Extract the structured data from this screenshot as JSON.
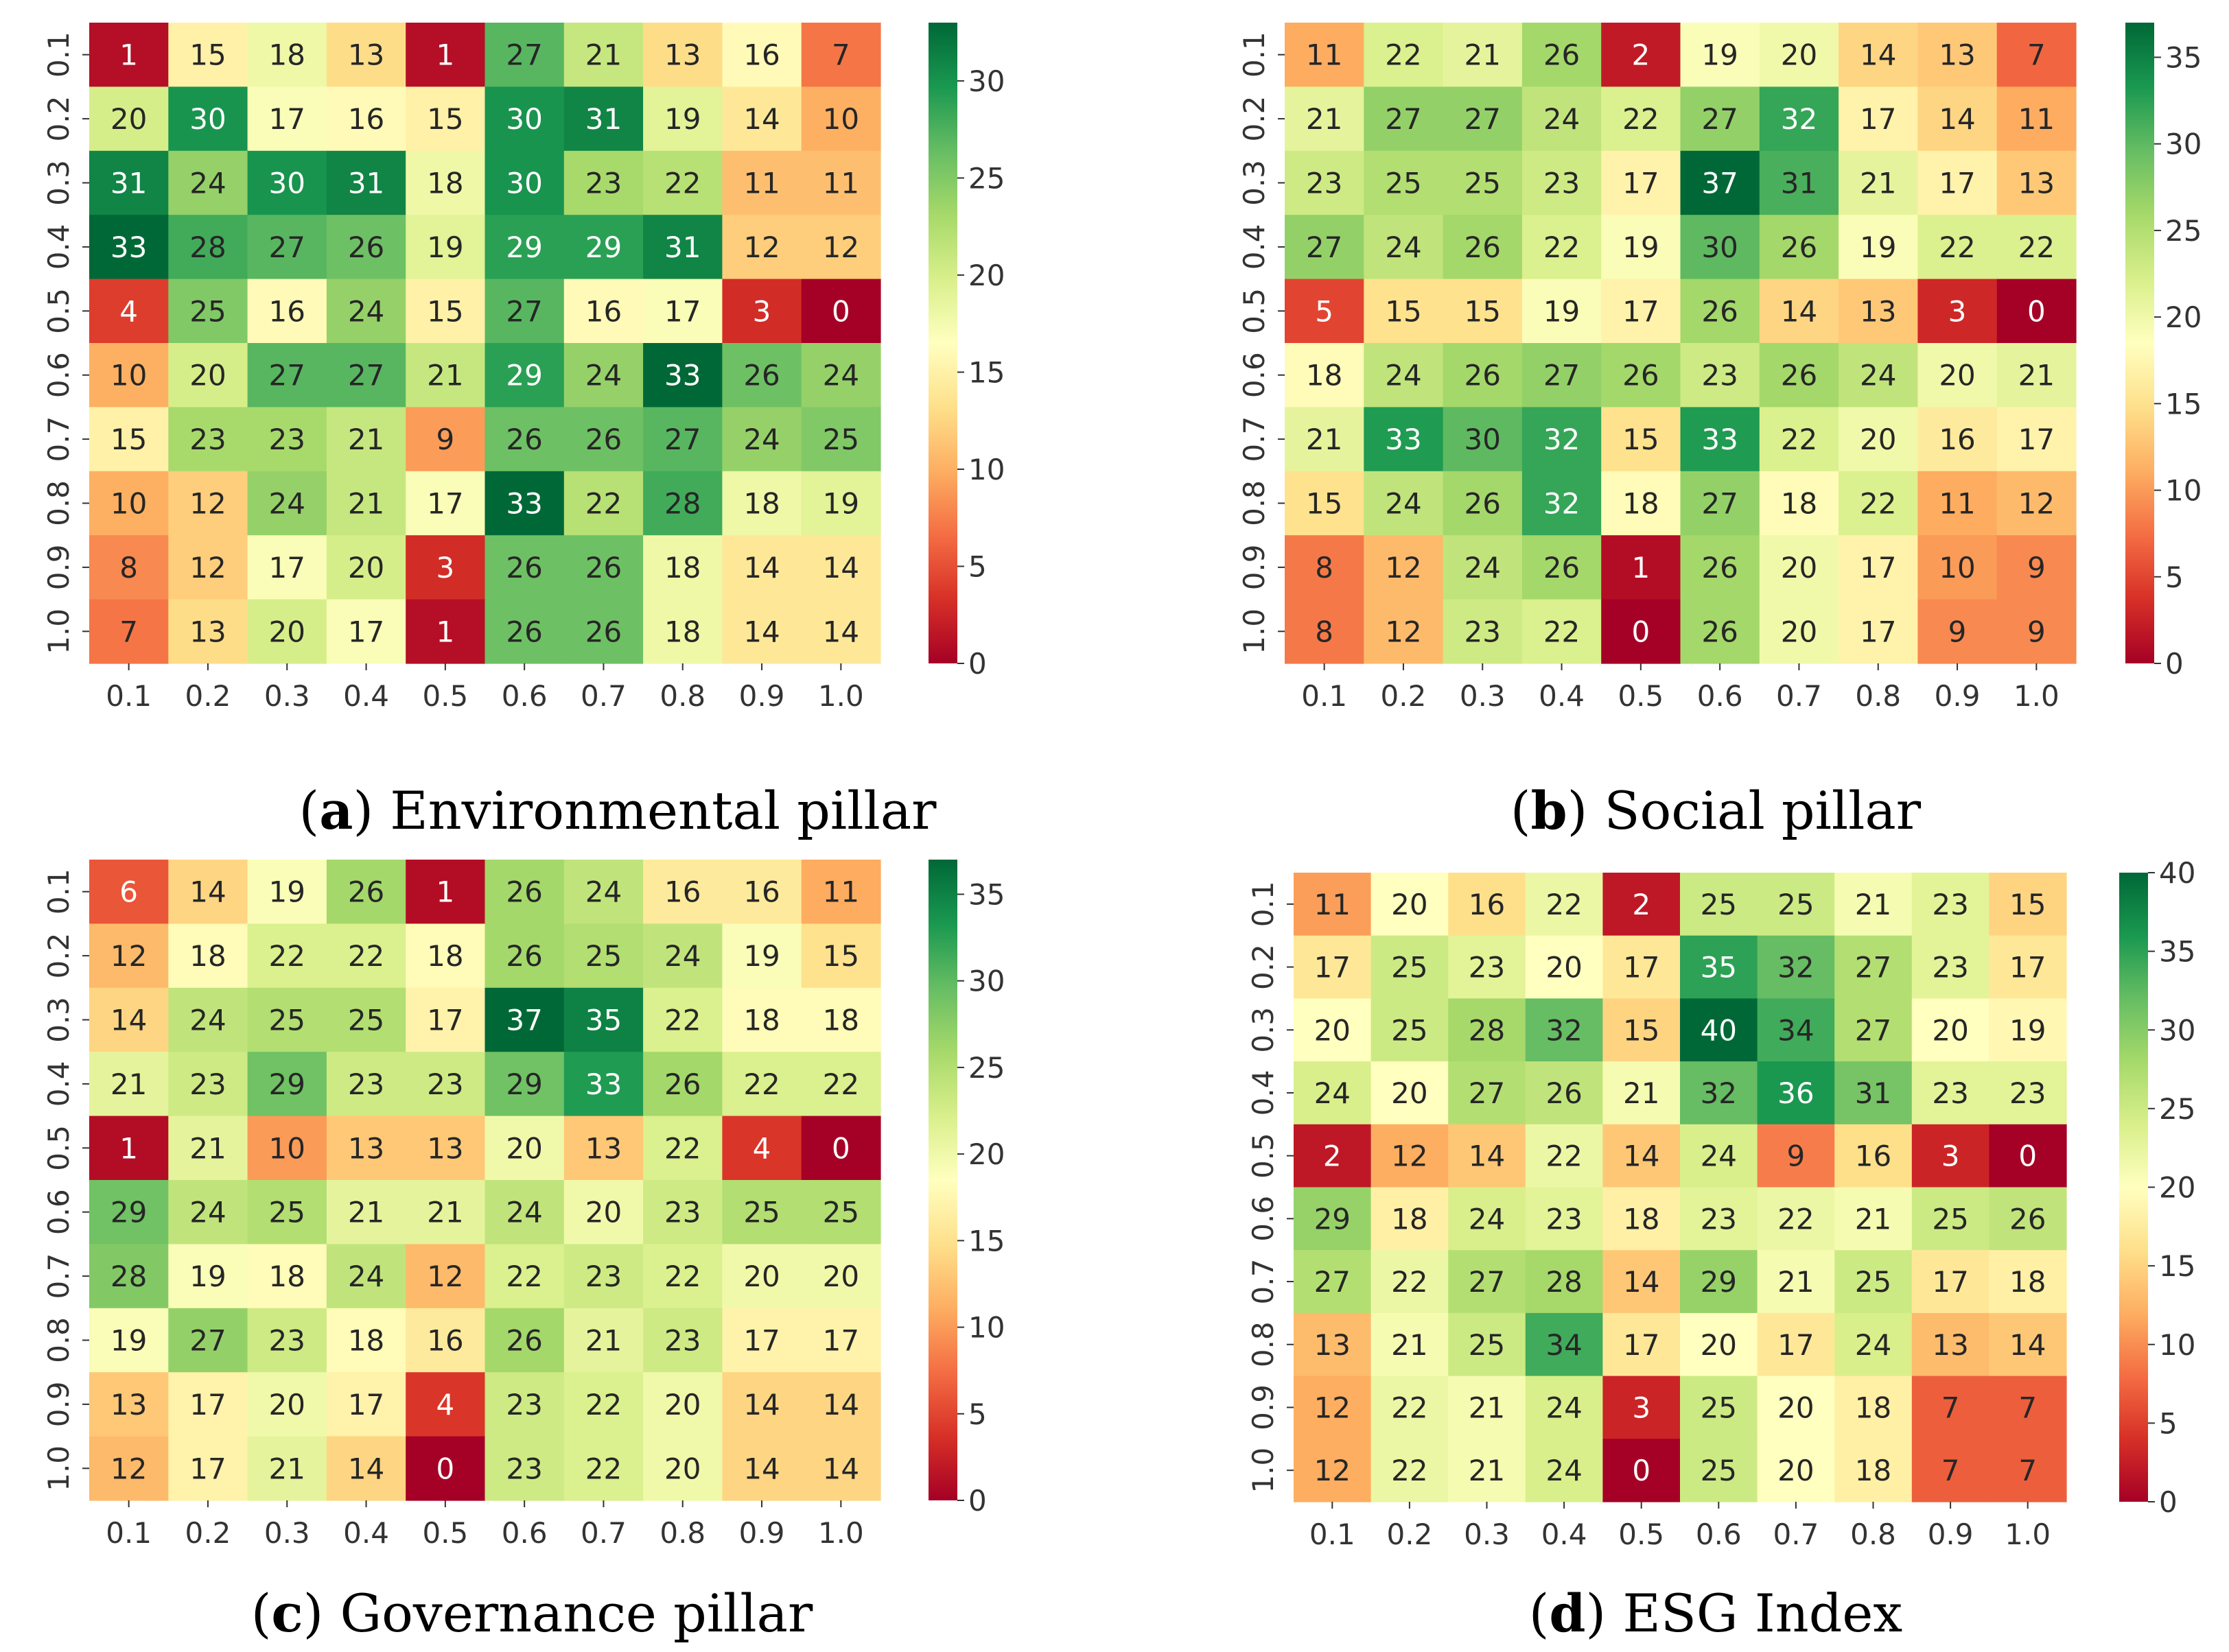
{
  "chart_data": [
    {
      "type": "heatmap",
      "caption_letter": "a",
      "caption_text": "Environmental pillar",
      "x_ticks": [
        "0.1",
        "0.2",
        "0.3",
        "0.4",
        "0.5",
        "0.6",
        "0.7",
        "0.8",
        "0.9",
        "1.0"
      ],
      "y_ticks": [
        "0.1",
        "0.2",
        "0.3",
        "0.4",
        "0.5",
        "0.6",
        "0.7",
        "0.8",
        "0.9",
        "1.0"
      ],
      "values": [
        [
          1,
          15,
          18,
          13,
          1,
          27,
          21,
          13,
          16,
          7
        ],
        [
          20,
          30,
          17,
          16,
          15,
          30,
          31,
          19,
          14,
          10
        ],
        [
          31,
          24,
          30,
          31,
          18,
          30,
          23,
          22,
          11,
          11
        ],
        [
          33,
          28,
          27,
          26,
          19,
          29,
          29,
          31,
          12,
          12
        ],
        [
          4,
          25,
          16,
          24,
          15,
          27,
          16,
          17,
          3,
          0
        ],
        [
          10,
          20,
          27,
          27,
          21,
          29,
          24,
          33,
          26,
          24
        ],
        [
          15,
          23,
          23,
          21,
          9,
          26,
          26,
          27,
          24,
          25
        ],
        [
          10,
          12,
          24,
          21,
          17,
          33,
          22,
          28,
          18,
          19
        ],
        [
          8,
          12,
          17,
          20,
          3,
          26,
          26,
          18,
          14,
          14
        ],
        [
          7,
          13,
          20,
          17,
          1,
          26,
          26,
          18,
          14,
          14
        ]
      ],
      "vmin": 0,
      "vmax": 33,
      "colorbar_ticks": [
        0,
        5,
        10,
        15,
        20,
        25,
        30
      ],
      "colormap": [
        "#a50026",
        "#d73027",
        "#f46d43",
        "#fdae61",
        "#fee08b",
        "#ffffbf",
        "#d9ef8b",
        "#a6d96a",
        "#66bd63",
        "#1a9850",
        "#006837"
      ]
    },
    {
      "type": "heatmap",
      "caption_letter": "b",
      "caption_text": "Social pillar",
      "x_ticks": [
        "0.1",
        "0.2",
        "0.3",
        "0.4",
        "0.5",
        "0.6",
        "0.7",
        "0.8",
        "0.9",
        "1.0"
      ],
      "y_ticks": [
        "0.1",
        "0.2",
        "0.3",
        "0.4",
        "0.5",
        "0.6",
        "0.7",
        "0.8",
        "0.9",
        "1.0"
      ],
      "values": [
        [
          11,
          22,
          21,
          26,
          2,
          19,
          20,
          14,
          13,
          7
        ],
        [
          21,
          27,
          27,
          24,
          22,
          27,
          32,
          17,
          14,
          11
        ],
        [
          23,
          25,
          25,
          23,
          17,
          37,
          31,
          21,
          17,
          13
        ],
        [
          27,
          24,
          26,
          22,
          19,
          30,
          26,
          19,
          22,
          22
        ],
        [
          5,
          15,
          15,
          19,
          17,
          26,
          14,
          13,
          3,
          0
        ],
        [
          18,
          24,
          26,
          27,
          26,
          23,
          26,
          24,
          20,
          21
        ],
        [
          21,
          33,
          30,
          32,
          15,
          33,
          22,
          20,
          16,
          17
        ],
        [
          15,
          24,
          26,
          32,
          18,
          27,
          18,
          22,
          11,
          12
        ],
        [
          8,
          12,
          24,
          26,
          1,
          26,
          20,
          17,
          10,
          9
        ],
        [
          8,
          12,
          23,
          22,
          0,
          26,
          20,
          17,
          9,
          9
        ]
      ],
      "vmin": 0,
      "vmax": 37,
      "colorbar_ticks": [
        0,
        5,
        10,
        15,
        20,
        25,
        30,
        35
      ],
      "colormap": [
        "#a50026",
        "#d73027",
        "#f46d43",
        "#fdae61",
        "#fee08b",
        "#ffffbf",
        "#d9ef8b",
        "#a6d96a",
        "#66bd63",
        "#1a9850",
        "#006837"
      ]
    },
    {
      "type": "heatmap",
      "caption_letter": "c",
      "caption_text": "Governance pillar",
      "x_ticks": [
        "0.1",
        "0.2",
        "0.3",
        "0.4",
        "0.5",
        "0.6",
        "0.7",
        "0.8",
        "0.9",
        "1.0"
      ],
      "y_ticks": [
        "0.1",
        "0.2",
        "0.3",
        "0.4",
        "0.5",
        "0.6",
        "0.7",
        "0.8",
        "0.9",
        "1.0"
      ],
      "values": [
        [
          6,
          14,
          19,
          26,
          1,
          26,
          24,
          16,
          16,
          11
        ],
        [
          12,
          18,
          22,
          22,
          18,
          26,
          25,
          24,
          19,
          15
        ],
        [
          14,
          24,
          25,
          25,
          17,
          37,
          35,
          22,
          18,
          18
        ],
        [
          21,
          23,
          29,
          23,
          23,
          29,
          33,
          26,
          22,
          22
        ],
        [
          1,
          21,
          10,
          13,
          13,
          20,
          13,
          22,
          4,
          0
        ],
        [
          29,
          24,
          25,
          21,
          21,
          24,
          20,
          23,
          25,
          25
        ],
        [
          28,
          19,
          18,
          24,
          12,
          22,
          23,
          22,
          20,
          20
        ],
        [
          19,
          27,
          23,
          18,
          16,
          26,
          21,
          23,
          17,
          17
        ],
        [
          13,
          17,
          20,
          17,
          4,
          23,
          22,
          20,
          14,
          14
        ],
        [
          12,
          17,
          21,
          14,
          0,
          23,
          22,
          20,
          14,
          14
        ]
      ],
      "vmin": 0,
      "vmax": 37,
      "colorbar_ticks": [
        0,
        5,
        10,
        15,
        20,
        25,
        30,
        35
      ],
      "colormap": [
        "#a50026",
        "#d73027",
        "#f46d43",
        "#fdae61",
        "#fee08b",
        "#ffffbf",
        "#d9ef8b",
        "#a6d96a",
        "#66bd63",
        "#1a9850",
        "#006837"
      ]
    },
    {
      "type": "heatmap",
      "caption_letter": "d",
      "caption_text": "ESG Index",
      "x_ticks": [
        "0.1",
        "0.2",
        "0.3",
        "0.4",
        "0.5",
        "0.6",
        "0.7",
        "0.8",
        "0.9",
        "1.0"
      ],
      "y_ticks": [
        "0.1",
        "0.2",
        "0.3",
        "0.4",
        "0.5",
        "0.6",
        "0.7",
        "0.8",
        "0.9",
        "1.0"
      ],
      "values": [
        [
          11,
          20,
          16,
          22,
          2,
          25,
          25,
          21,
          23,
          15
        ],
        [
          17,
          25,
          23,
          20,
          17,
          35,
          32,
          27,
          23,
          17
        ],
        [
          20,
          25,
          28,
          32,
          15,
          40,
          34,
          27,
          20,
          19
        ],
        [
          24,
          20,
          27,
          26,
          21,
          32,
          36,
          31,
          23,
          23
        ],
        [
          2,
          12,
          14,
          22,
          14,
          24,
          9,
          16,
          3,
          0
        ],
        [
          29,
          18,
          24,
          23,
          18,
          23,
          22,
          21,
          25,
          26
        ],
        [
          27,
          22,
          27,
          28,
          14,
          29,
          21,
          25,
          17,
          18
        ],
        [
          13,
          21,
          25,
          34,
          17,
          20,
          17,
          24,
          13,
          14
        ],
        [
          12,
          22,
          21,
          24,
          3,
          25,
          20,
          18,
          7,
          7
        ],
        [
          12,
          22,
          21,
          24,
          0,
          25,
          20,
          18,
          7,
          7
        ]
      ],
      "vmin": 0,
      "vmax": 40,
      "colorbar_ticks": [
        0,
        5,
        10,
        15,
        20,
        25,
        30,
        35,
        40
      ],
      "colormap": [
        "#a50026",
        "#d73027",
        "#f46d43",
        "#fdae61",
        "#fee08b",
        "#ffffbf",
        "#d9ef8b",
        "#a6d96a",
        "#66bd63",
        "#1a9850",
        "#006837"
      ]
    }
  ]
}
